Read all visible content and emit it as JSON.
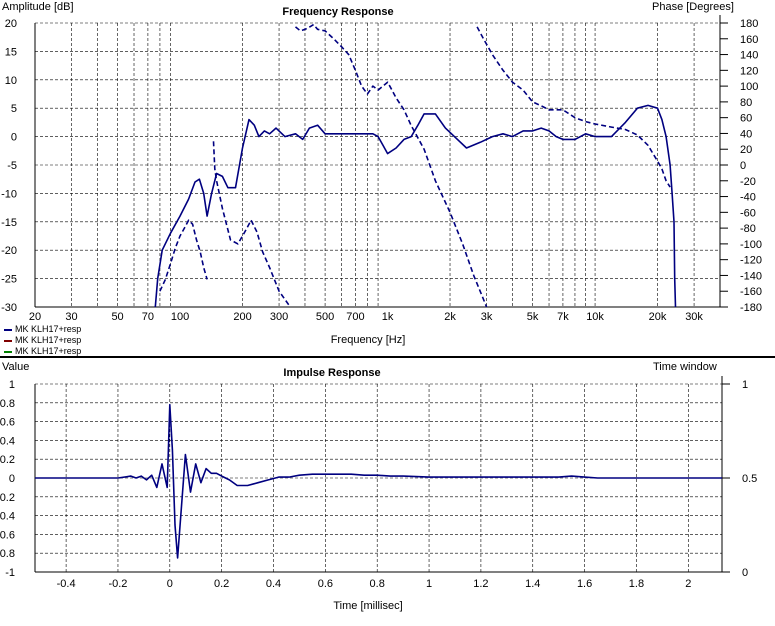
{
  "frequency_response": {
    "title": "Frequency Response",
    "y_left_label": "Amplitude [dB]",
    "y_right_label": "Phase [Degrees]",
    "x_label": "Frequency [Hz]"
  },
  "impulse_response": {
    "title": "Impulse Response",
    "y_left_label": "Value",
    "y_right_label": "Time window",
    "x_label": "Time [millisec]"
  },
  "legend": [
    {
      "label": "MK KLH17+resp",
      "color": "#000080"
    },
    {
      "label": "MK KLH17+resp",
      "color": "#800000"
    },
    {
      "label": "MK KLH17+resp",
      "color": "#008000"
    }
  ],
  "colors": {
    "curve": "#000080",
    "grid": "#000000",
    "axis": "#000000"
  },
  "chart_data": [
    {
      "type": "line",
      "title": "Frequency Response",
      "xlabel": "Frequency [Hz]",
      "ylabel": "Amplitude [dB]",
      "y2label": "Phase [Degrees]",
      "x_scale": "log",
      "xlim": [
        20,
        40000
      ],
      "ylim": [
        -30,
        20
      ],
      "y2lim": [
        -180,
        180
      ],
      "x_ticks": [
        20,
        30,
        50,
        70,
        100,
        200,
        300,
        500,
        700,
        1000,
        2000,
        3000,
        5000,
        7000,
        10000,
        20000,
        30000
      ],
      "x_tick_labels": [
        "20",
        "30",
        "50",
        "70",
        "100",
        "200",
        "300",
        "500",
        "700",
        "1k",
        "2k",
        "3k",
        "5k",
        "7k",
        "10k",
        "20k",
        "30k"
      ],
      "y_ticks": [
        20,
        15,
        10,
        5,
        0,
        -5,
        -10,
        -15,
        -20,
        -25,
        -30
      ],
      "y2_ticks": [
        180,
        160,
        140,
        120,
        100,
        80,
        60,
        40,
        20,
        0,
        -20,
        -40,
        -60,
        -80,
        -100,
        -120,
        -140,
        -160,
        -180
      ],
      "grid": true,
      "series": [
        {
          "name": "MK KLH17+resp",
          "style": "solid",
          "axis": "left",
          "x": [
            76,
            78,
            82,
            90,
            100,
            110,
            118,
            124,
            130,
            135,
            142,
            150,
            160,
            170,
            185,
            200,
            215,
            228,
            240,
            255,
            270,
            290,
            320,
            360,
            390,
            420,
            460,
            500,
            540,
            580,
            620,
            680,
            750,
            800,
            850,
            900,
            950,
            1000,
            1100,
            1200,
            1300,
            1400,
            1500,
            1700,
            1900,
            2100,
            2400,
            2800,
            3200,
            3600,
            4000,
            4500,
            5000,
            5500,
            6000,
            6500,
            7000,
            8000,
            9000,
            10000,
            12000,
            14000,
            16000,
            18000,
            20000,
            21000,
            22000,
            23000,
            23500,
            24000,
            24200,
            24400
          ],
          "values": [
            -30,
            -25,
            -20,
            -17,
            -14,
            -11,
            -8,
            -7.5,
            -10,
            -14,
            -10,
            -6.5,
            -7,
            -9,
            -9,
            -2,
            3,
            2,
            0,
            1,
            0.5,
            1.5,
            0,
            0.5,
            -0.5,
            1.5,
            2,
            0.5,
            0.5,
            0.5,
            0.5,
            0.5,
            0.5,
            0.5,
            0.5,
            0,
            -1.5,
            -3,
            -2,
            -0.5,
            0,
            2,
            4,
            4,
            1.5,
            0,
            -2,
            -1,
            0,
            0.5,
            0,
            1,
            1,
            1.5,
            1,
            0,
            -0.5,
            -0.5,
            0.5,
            0,
            0,
            2.5,
            5,
            5.5,
            5,
            3,
            0,
            -5,
            -10,
            -15,
            -25,
            -30
          ]
        },
        {
          "name": "MK KLH17+resp",
          "style": "dashed",
          "axis": "right",
          "x": [
            80,
            85,
            90,
            95,
            100,
            105,
            110,
            115,
            120,
            125,
            130,
            135
          ],
          "values": [
            -160,
            -145,
            -125,
            -105,
            -90,
            -80,
            -70,
            -75,
            -95,
            -110,
            -130,
            -145
          ]
        },
        {
          "name": "MK KLH17+resp",
          "style": "dashed",
          "axis": "right",
          "x": [
            145,
            147,
            150,
            160,
            175,
            190,
            200,
            210,
            220,
            235,
            250,
            270,
            300,
            340
          ],
          "values": [
            30,
            -5,
            -20,
            -55,
            -95,
            -100,
            -90,
            -80,
            -70,
            -85,
            -110,
            -130,
            -160,
            -180
          ]
        },
        {
          "name": "MK KLH17+resp",
          "style": "dashed",
          "axis": "right",
          "x": [
            360,
            380,
            410,
            440,
            460,
            500,
            550,
            600,
            650,
            700,
            750,
            800,
            850,
            900,
            950,
            1000,
            1050,
            1100,
            1200,
            1300,
            1500,
            1700,
            2000,
            2300,
            2600,
            3000
          ],
          "values": [
            175,
            170,
            173,
            178,
            172,
            170,
            160,
            150,
            140,
            120,
            100,
            90,
            100,
            95,
            100,
            105,
            95,
            85,
            70,
            50,
            20,
            -20,
            -60,
            -100,
            -140,
            -180
          ]
        },
        {
          "name": "MK KLH17+resp",
          "style": "dashed",
          "axis": "right",
          "x": [
            2700,
            2900,
            3200,
            3600,
            4000,
            4500,
            5000,
            5500,
            6000,
            7000,
            8000,
            9000,
            10000,
            12000,
            14000,
            16000,
            18000,
            20000,
            21000,
            22000,
            23000
          ],
          "values": [
            175,
            160,
            140,
            120,
            105,
            95,
            80,
            75,
            70,
            70,
            60,
            55,
            52,
            48,
            45,
            38,
            25,
            5,
            -5,
            -20,
            -28
          ]
        }
      ]
    },
    {
      "type": "line",
      "title": "Impulse Response",
      "xlabel": "Time [millisec]",
      "ylabel": "Value",
      "y2label": "Time window",
      "xlim": [
        -0.52,
        2.13
      ],
      "ylim": [
        -1,
        1
      ],
      "y2lim": [
        0,
        1
      ],
      "x_ticks": [
        -0.4,
        -0.2,
        0,
        0.2,
        0.4,
        0.6,
        0.8,
        1,
        1.2,
        1.4,
        1.6,
        1.8,
        2
      ],
      "x_tick_labels": [
        "-0.4",
        "-0.2",
        "0",
        "0.2",
        "0.4",
        "0.6",
        "0.8",
        "1",
        "1.2",
        "1.4",
        "1.6",
        "1.8",
        "2"
      ],
      "y_ticks": [
        1,
        0.8,
        0.6,
        0.4,
        0.2,
        0,
        -0.2,
        -0.4,
        -0.6,
        -0.8,
        -1
      ],
      "y_tick_labels": [
        "1",
        "0.8",
        "0.6",
        "0.4",
        "0.2",
        "0",
        "-0.2",
        "-0.4",
        "-0.6",
        "-0.8",
        "-1"
      ],
      "y2_ticks": [
        1,
        0.5,
        0
      ],
      "y2_tick_labels": [
        "1",
        "0.5",
        "0"
      ],
      "grid": true,
      "series": [
        {
          "name": "MK KLH17+resp",
          "style": "solid",
          "x": [
            -0.52,
            -0.2,
            -0.15,
            -0.13,
            -0.11,
            -0.09,
            -0.07,
            -0.05,
            -0.03,
            -0.01,
            0.0,
            0.01,
            0.02,
            0.03,
            0.045,
            0.06,
            0.08,
            0.1,
            0.12,
            0.14,
            0.16,
            0.18,
            0.2,
            0.23,
            0.26,
            0.3,
            0.34,
            0.38,
            0.42,
            0.46,
            0.5,
            0.55,
            0.6,
            0.65,
            0.7,
            0.75,
            0.8,
            0.85,
            0.9,
            1.0,
            1.1,
            1.2,
            1.3,
            1.4,
            1.5,
            1.55,
            1.6,
            1.65,
            1.7,
            1.8,
            1.9,
            2.0,
            2.13
          ],
          "values": [
            0,
            0,
            0.02,
            0,
            0.02,
            -0.02,
            0.03,
            -0.1,
            0.15,
            -0.1,
            0.78,
            0.3,
            -0.5,
            -0.85,
            -0.3,
            0.25,
            -0.15,
            0.15,
            -0.05,
            0.1,
            0.05,
            0.05,
            0.02,
            -0.02,
            -0.08,
            -0.08,
            -0.05,
            -0.02,
            0.01,
            0.01,
            0.03,
            0.04,
            0.04,
            0.04,
            0.04,
            0.03,
            0.03,
            0.02,
            0.02,
            0.01,
            0.01,
            0.01,
            0.01,
            0.01,
            0.01,
            0.02,
            0.01,
            0,
            0,
            0,
            0,
            0,
            0
          ]
        }
      ]
    }
  ]
}
